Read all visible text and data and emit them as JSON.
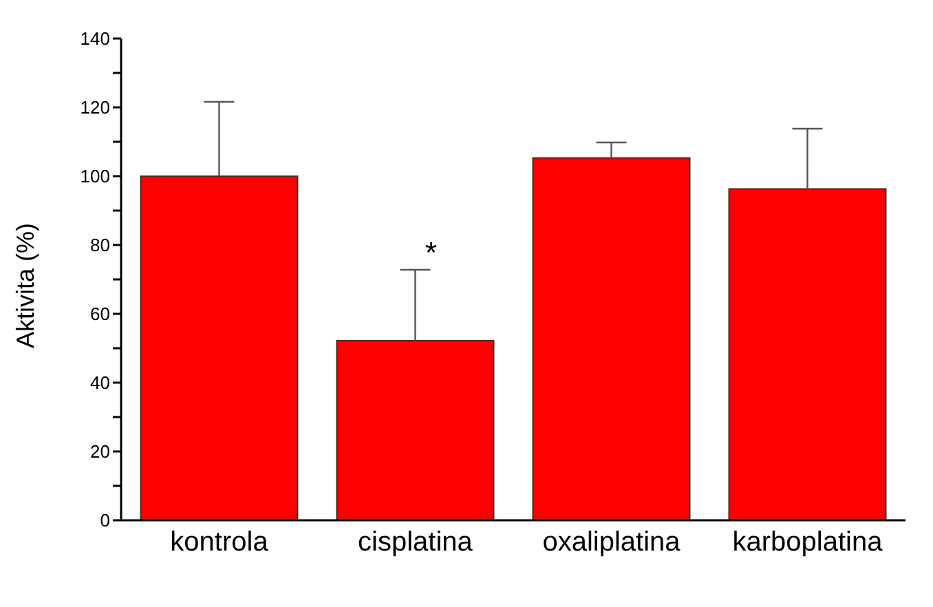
{
  "chart_data": {
    "type": "bar",
    "ylabel": "Aktivita (%)",
    "categories": [
      "kontrola",
      "cisplatina",
      "oxaliplatina",
      "karboplatina"
    ],
    "values": [
      100,
      52.2,
      105.3,
      96.3
    ],
    "errors": [
      [
        100,
        121.6
      ],
      [
        52.2,
        72.8
      ],
      [
        105.3,
        109.8
      ],
      [
        96.3,
        113.8
      ]
    ],
    "color": "#ff0000",
    "ylim": [
      0,
      140
    ],
    "yticks": [
      0,
      {
        "value": 10,
        "label": null
      },
      20,
      {
        "value": 30,
        "label": null
      },
      40,
      {
        "value": 50,
        "label": null
      },
      60,
      {
        "value": 70,
        "label": null
      },
      80,
      {
        "value": 90,
        "label": null
      },
      100,
      {
        "value": 110,
        "label": null
      },
      120,
      {
        "value": 130,
        "label": null
      },
      140
    ],
    "grid": false,
    "legend": false,
    "annotations": [
      "*"
    ]
  }
}
